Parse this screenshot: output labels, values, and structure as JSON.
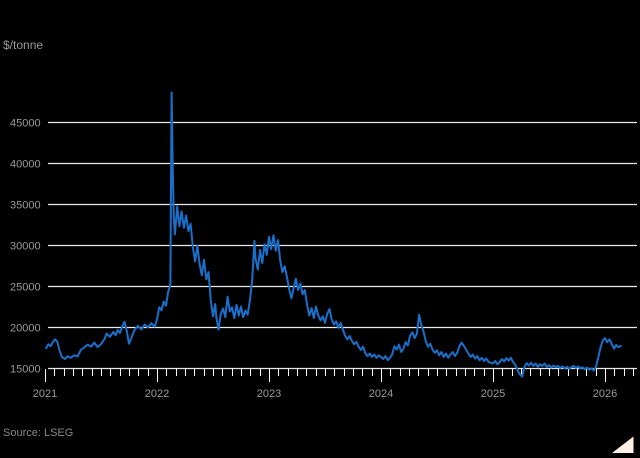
{
  "chart": {
    "unit_label": "$/tonne",
    "source_label": "Source: LSEG"
  },
  "colors": {
    "background": "#000000",
    "line": "#1a6fca",
    "grid": "#e9e9e9",
    "tick": "#ffffff",
    "text": "#9a9a9a",
    "source_text": "#8a8881",
    "corner_logo": "#fff1e5"
  },
  "chart_data": {
    "type": "line",
    "title": "",
    "ylabel": "$/tonne",
    "xlabel": "",
    "legend_position": "none",
    "grid": "horizontal-white-on-black",
    "y_ticks": [
      15000,
      20000,
      25000,
      30000,
      35000,
      40000,
      45000
    ],
    "x_ticks_years": [
      2021,
      2022,
      2023,
      2024,
      2025,
      2026
    ],
    "x_minor_ticks_per_year": 12,
    "xlim": [
      2021,
      2026.3
    ],
    "ylim": [
      13500,
      49500
    ],
    "series": [
      {
        "x": [
          2021.01,
          2021.03,
          2021.05,
          2021.07,
          2021.09,
          2021.11,
          2021.13,
          2021.15,
          2021.18,
          2021.2,
          2021.23,
          2021.26,
          2021.29,
          2021.32,
          2021.35,
          2021.38,
          2021.41,
          2021.44,
          2021.47,
          2021.5,
          2021.53,
          2021.55,
          2021.58,
          2021.61,
          2021.63,
          2021.65,
          2021.67,
          2021.69,
          2021.71,
          2021.73,
          2021.75,
          2021.78,
          2021.8,
          2021.83,
          2021.86,
          2021.89,
          2021.92,
          2021.95,
          2021.98,
          2022.0,
          2022.02,
          2022.04,
          2022.06,
          2022.08,
          2022.1,
          2022.12,
          2022.13,
          2022.14,
          2022.15,
          2022.16,
          2022.18,
          2022.2,
          2022.22,
          2022.24,
          2022.26,
          2022.28,
          2022.3,
          2022.32,
          2022.34,
          2022.36,
          2022.38,
          2022.4,
          2022.42,
          2022.44,
          2022.46,
          2022.48,
          2022.5,
          2022.52,
          2022.53,
          2022.55,
          2022.57,
          2022.59,
          2022.61,
          2022.63,
          2022.65,
          2022.67,
          2022.69,
          2022.71,
          2022.73,
          2022.75,
          2022.77,
          2022.79,
          2022.81,
          2022.83,
          2022.85,
          2022.87,
          2022.88,
          2022.9,
          2022.92,
          2022.94,
          2022.96,
          2022.98,
          2023.0,
          2023.02,
          2023.04,
          2023.06,
          2023.08,
          2023.1,
          2023.12,
          2023.14,
          2023.16,
          2023.18,
          2023.2,
          2023.22,
          2023.24,
          2023.26,
          2023.28,
          2023.3,
          2023.32,
          2023.34,
          2023.36,
          2023.38,
          2023.4,
          2023.42,
          2023.44,
          2023.46,
          2023.48,
          2023.5,
          2023.52,
          2023.54,
          2023.56,
          2023.58,
          2023.6,
          2023.62,
          2023.64,
          2023.66,
          2023.68,
          2023.7,
          2023.72,
          2023.74,
          2023.76,
          2023.78,
          2023.8,
          2023.82,
          2023.84,
          2023.86,
          2023.88,
          2023.9,
          2023.92,
          2023.94,
          2023.96,
          2023.98,
          2024.0,
          2024.02,
          2024.04,
          2024.06,
          2024.08,
          2024.1,
          2024.12,
          2024.14,
          2024.16,
          2024.18,
          2024.2,
          2024.22,
          2024.24,
          2024.26,
          2024.28,
          2024.3,
          2024.32,
          2024.34,
          2024.36,
          2024.38,
          2024.4,
          2024.42,
          2024.44,
          2024.46,
          2024.48,
          2024.5,
          2024.52,
          2024.54,
          2024.56,
          2024.58,
          2024.6,
          2024.62,
          2024.64,
          2024.66,
          2024.68,
          2024.7,
          2024.72,
          2024.74,
          2024.76,
          2024.78,
          2024.8,
          2024.82,
          2024.84,
          2024.86,
          2024.88,
          2024.9,
          2024.92,
          2024.94,
          2024.96,
          2024.98,
          2025.0,
          2025.02,
          2025.04,
          2025.06,
          2025.08,
          2025.1,
          2025.12,
          2025.14,
          2025.16,
          2025.18,
          2025.2,
          2025.23,
          2025.26,
          2025.28,
          2025.3,
          2025.32,
          2025.34,
          2025.36,
          2025.38,
          2025.4,
          2025.42,
          2025.44,
          2025.46,
          2025.48,
          2025.5,
          2025.52,
          2025.54,
          2025.56,
          2025.58,
          2025.6,
          2025.62,
          2025.64,
          2025.66,
          2025.68,
          2025.7,
          2025.72,
          2025.74,
          2025.76,
          2025.78,
          2025.8,
          2025.82,
          2025.84,
          2025.86,
          2025.88,
          2025.9,
          2025.92,
          2025.94,
          2025.96,
          2025.98,
          2026.0,
          2026.02,
          2026.04,
          2026.06,
          2026.08,
          2026.1,
          2026.12,
          2026.14
        ],
        "y": [
          17400,
          17900,
          17650,
          18150,
          18500,
          18200,
          17100,
          16350,
          16100,
          16450,
          16250,
          16550,
          16400,
          17200,
          17500,
          17850,
          17600,
          18100,
          17550,
          17900,
          18500,
          19200,
          18800,
          19400,
          19000,
          19650,
          19250,
          20100,
          20650,
          19500,
          17950,
          19000,
          19650,
          20150,
          19700,
          20300,
          19950,
          20450,
          20050,
          20900,
          22400,
          22050,
          23100,
          22600,
          24300,
          25200,
          48600,
          39500,
          33400,
          31300,
          34700,
          32300,
          34100,
          32100,
          33600,
          31700,
          32600,
          29800,
          28000,
          29900,
          27700,
          26300,
          28200,
          25800,
          26700,
          23200,
          21300,
          22800,
          21100,
          19700,
          21600,
          22250,
          21200,
          23700,
          21900,
          22400,
          21100,
          22700,
          21400,
          22500,
          21200,
          22000,
          21500,
          23300,
          25700,
          30500,
          28300,
          27000,
          29400,
          27800,
          30100,
          28800,
          31000,
          29500,
          31200,
          29300,
          30600,
          28100,
          26700,
          27400,
          26100,
          24600,
          23500,
          24700,
          25900,
          24500,
          25300,
          24000,
          24500,
          22700,
          21400,
          22300,
          21100,
          22500,
          21400,
          20800,
          21300,
          20500,
          21600,
          22200,
          20900,
          20300,
          20700,
          19900,
          20500,
          19700,
          18900,
          18500,
          18900,
          18300,
          17900,
          18200,
          17600,
          17200,
          17600,
          16800,
          16450,
          16750,
          16350,
          16650,
          16250,
          16550,
          16350,
          16100,
          16450,
          15950,
          16250,
          16650,
          17650,
          17250,
          17850,
          16950,
          17350,
          18150,
          17750,
          18950,
          19350,
          18650,
          19150,
          21500,
          20250,
          19400,
          18250,
          17600,
          17950,
          17250,
          16850,
          17150,
          16550,
          16950,
          16350,
          16750,
          16250,
          16650,
          16950,
          16450,
          16850,
          17650,
          18100,
          17700,
          17250,
          16750,
          16350,
          16650,
          16150,
          16450,
          15950,
          16250,
          15850,
          16150,
          15750,
          15650,
          15550,
          15850,
          15450,
          15750,
          16100,
          15800,
          16200,
          15900,
          16250,
          15700,
          15350,
          14400,
          13950,
          15100,
          15600,
          15300,
          15650,
          15250,
          15550,
          15150,
          15450,
          15250,
          15550,
          15150,
          15350,
          15050,
          15300,
          15100,
          15250,
          15000,
          15200,
          14950,
          15150,
          14900,
          15100,
          15250,
          15000,
          15200,
          14950,
          15100,
          14850,
          15050,
          14800,
          14950,
          14700,
          15150,
          16300,
          17500,
          18350,
          18650,
          18150,
          18500,
          17950,
          17350,
          17800,
          17550,
          17700
        ]
      }
    ]
  }
}
